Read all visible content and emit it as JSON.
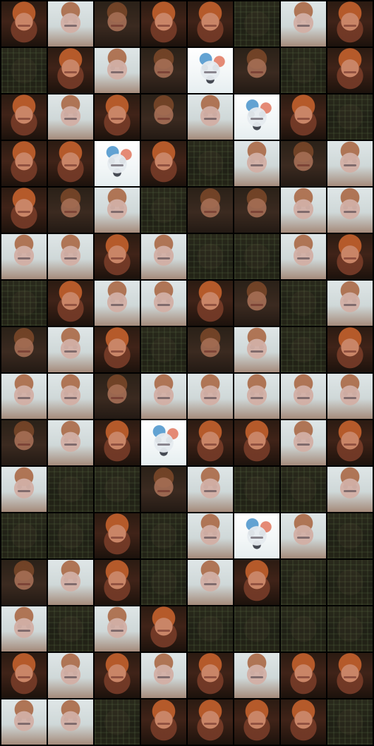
{
  "grid": {
    "columns": 8,
    "rows": 16,
    "tiles": [
      "warm",
      "pale",
      "muted",
      "warm",
      "warm",
      "dark",
      "pale",
      "warm",
      "dark",
      "warm",
      "pale",
      "muted",
      "blue",
      "muted",
      "dark",
      "warm",
      "warm",
      "pale",
      "warm",
      "muted",
      "pale",
      "blue",
      "warm",
      "dark",
      "warm",
      "warm",
      "blue",
      "warm",
      "dark",
      "pale",
      "muted",
      "pale",
      "warm",
      "muted",
      "pale",
      "dark",
      "muted",
      "muted",
      "pale",
      "pale",
      "pale",
      "pale",
      "warm",
      "pale",
      "dark",
      "dark",
      "pale",
      "warm",
      "dark",
      "warm",
      "pale",
      "pale",
      "warm",
      "muted",
      "dark",
      "pale",
      "muted",
      "pale",
      "warm",
      "dark",
      "muted",
      "pale",
      "dark",
      "warm",
      "pale",
      "pale",
      "muted",
      "pale",
      "pale",
      "pale",
      "pale",
      "pale",
      "muted",
      "pale",
      "warm",
      "blue",
      "warm",
      "warm",
      "pale",
      "warm",
      "pale",
      "dark",
      "dark",
      "muted",
      "pale",
      "dark",
      "dark",
      "pale",
      "dark",
      "dark",
      "warm",
      "dark",
      "pale",
      "blue",
      "pale",
      "dark",
      "muted",
      "pale",
      "warm",
      "dark",
      "pale",
      "warm",
      "dark",
      "dark",
      "pale",
      "dark",
      "pale",
      "warm",
      "dark",
      "dark",
      "dark",
      "dark",
      "warm",
      "pale",
      "warm",
      "pale",
      "warm",
      "pale",
      "warm",
      "warm",
      "pale",
      "pale",
      "dark",
      "warm",
      "warm",
      "warm",
      "warm",
      "dark"
    ]
  }
}
